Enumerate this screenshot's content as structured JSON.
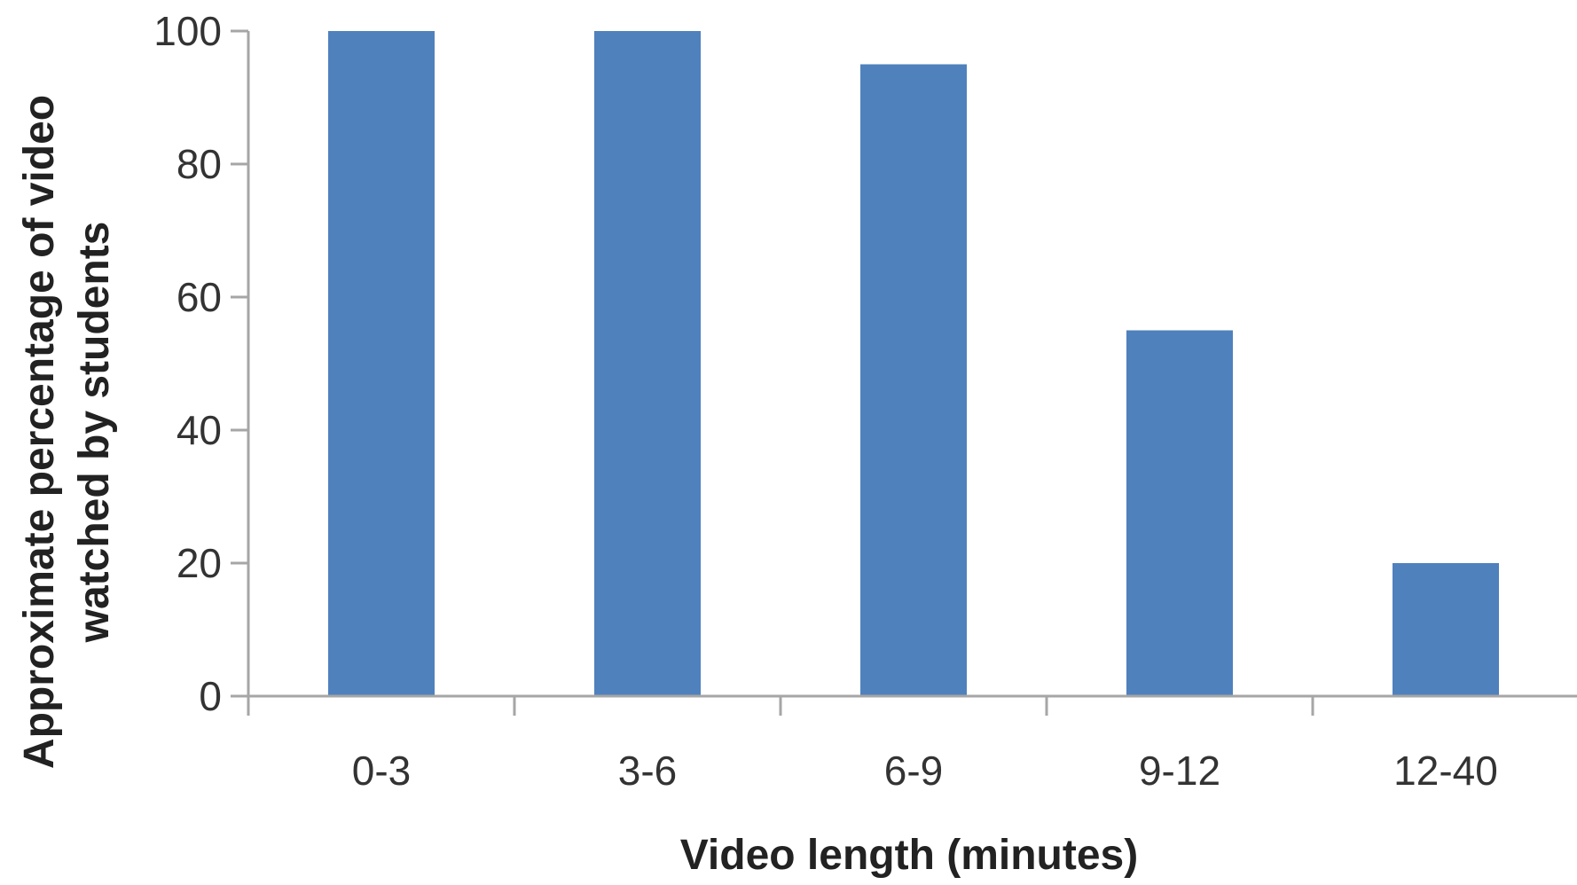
{
  "chart_data": {
    "type": "bar",
    "categories": [
      "0-3",
      "3-6",
      "6-9",
      "9-12",
      "12-40"
    ],
    "values": [
      100,
      100,
      95,
      55,
      20
    ],
    "yticks": [
      "0",
      "20",
      "40",
      "60",
      "80",
      "100"
    ],
    "ylim": [
      0,
      100
    ],
    "xlabel": "Video length (minutes)",
    "ylabel_lines": [
      "Approximate percentage of video",
      "watched by students"
    ],
    "bar_color": "#4f81bd",
    "axis_color": "#a6a6a6",
    "grid": false,
    "legend": "none"
  }
}
